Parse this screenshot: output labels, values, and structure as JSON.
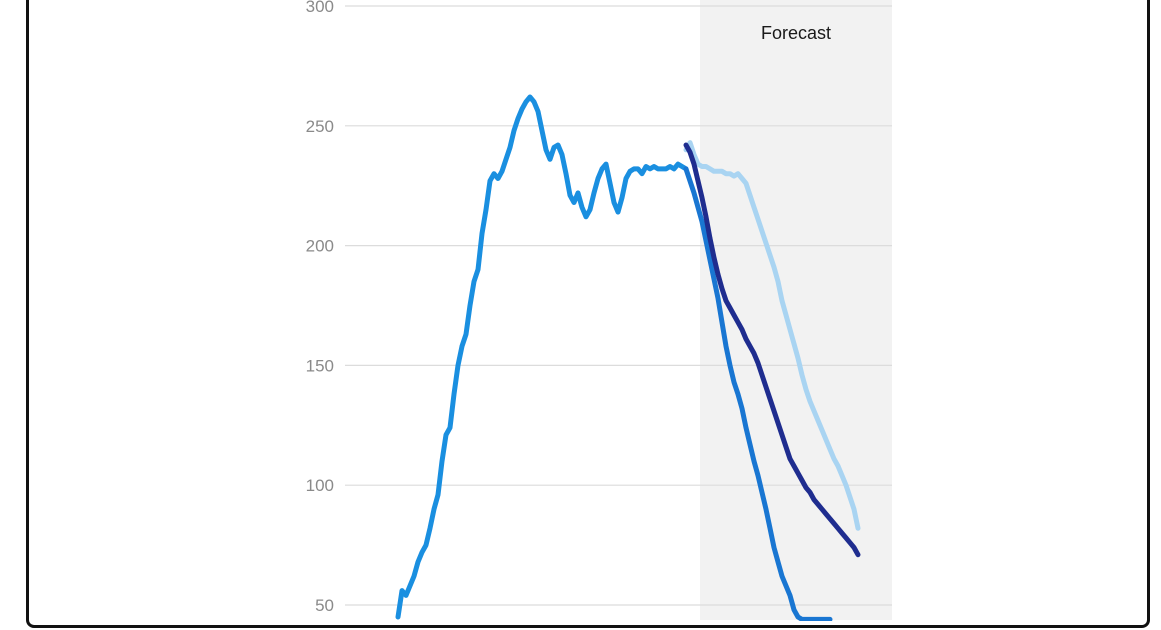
{
  "chart_data": {
    "type": "line",
    "title": "",
    "xlabel": "",
    "ylabel": "",
    "ylim": [
      45,
      300
    ],
    "yticks": [
      300,
      250,
      200,
      150,
      100,
      50
    ],
    "grid": true,
    "forecast_label": "Forecast",
    "colors": {
      "history": "#1a8fe0",
      "forecast_low": "#1976d2",
      "forecast_mid": "#1f2d8f",
      "forecast_high": "#a9d4f2",
      "forecast_band": "#f2f2f2"
    },
    "series": [
      {
        "key": "history",
        "x": [
          0,
          1,
          2,
          3,
          4,
          5,
          6,
          7,
          8,
          9,
          10,
          11,
          12,
          13,
          14,
          15,
          16,
          17,
          18,
          19,
          20,
          21,
          22,
          23,
          24,
          25,
          26,
          27,
          28,
          29,
          30,
          31,
          32,
          33,
          34,
          35,
          36,
          37,
          38,
          39,
          40,
          41,
          42,
          43,
          44,
          45,
          46,
          47,
          48,
          49,
          50,
          51,
          52,
          53,
          54,
          55,
          56,
          57,
          58,
          59,
          60,
          61,
          62,
          63,
          64,
          65,
          66,
          67,
          68,
          69,
          70,
          71,
          72
        ],
        "values": [
          45,
          56,
          54,
          58,
          62,
          68,
          72,
          75,
          82,
          90,
          96,
          110,
          121,
          124,
          138,
          150,
          158,
          163,
          175,
          185,
          190,
          205,
          215,
          227,
          230,
          228,
          231,
          236,
          241,
          248,
          253,
          257,
          260,
          262,
          260,
          256,
          248,
          240,
          236,
          241,
          242,
          238,
          230,
          221,
          218,
          222,
          216,
          212,
          215,
          222,
          228,
          232,
          234,
          226,
          218,
          214,
          220,
          228,
          231,
          232,
          232,
          230,
          233,
          232,
          233,
          232,
          232,
          232,
          233,
          232,
          234,
          233,
          232
        ],
        "color_key": "history"
      },
      {
        "key": "forecast_low",
        "x": [
          72,
          73,
          74,
          75,
          76,
          77,
          78,
          79,
          80,
          81,
          82,
          83,
          84,
          85,
          86,
          87,
          88,
          89,
          90,
          91,
          92,
          93,
          94,
          95,
          96,
          97,
          98,
          99,
          100,
          101,
          102,
          103,
          104,
          105,
          106,
          107,
          108
        ],
        "values": [
          232,
          227,
          222,
          216,
          210,
          202,
          194,
          186,
          178,
          168,
          158,
          150,
          143,
          138,
          132,
          124,
          117,
          110,
          104,
          97,
          90,
          82,
          74,
          68,
          62,
          58,
          54,
          48,
          45,
          44,
          44,
          44,
          44,
          44,
          44,
          44,
          44
        ],
        "color_key": "forecast_low"
      },
      {
        "key": "forecast_mid",
        "x": [
          72,
          73,
          74,
          75,
          76,
          77,
          78,
          79,
          80,
          81,
          82,
          83,
          84,
          85,
          86,
          87,
          88,
          89,
          90,
          91,
          92,
          93,
          94,
          95,
          96,
          97,
          98,
          99,
          100,
          101,
          102,
          103,
          104,
          105,
          106,
          107,
          108,
          109,
          110,
          111,
          112,
          113,
          114,
          115
        ],
        "values": [
          242,
          239,
          234,
          227,
          220,
          212,
          203,
          195,
          188,
          182,
          177,
          174,
          171,
          168,
          165,
          161,
          158,
          155,
          151,
          146,
          141,
          136,
          131,
          126,
          121,
          116,
          111,
          108,
          105,
          102,
          99,
          97,
          94,
          92,
          90,
          88,
          86,
          84,
          82,
          80,
          78,
          76,
          74,
          71
        ],
        "color_key": "forecast_mid"
      },
      {
        "key": "forecast_high",
        "x": [
          72,
          73,
          74,
          75,
          76,
          77,
          78,
          79,
          80,
          81,
          82,
          83,
          84,
          85,
          86,
          87,
          88,
          89,
          90,
          91,
          92,
          93,
          94,
          95,
          96,
          97,
          98,
          99,
          100,
          101,
          102,
          103,
          104,
          105,
          106,
          107,
          108,
          109,
          110,
          111,
          112,
          113,
          114,
          115
        ],
        "values": [
          240,
          243,
          238,
          234,
          233,
          233,
          232,
          231,
          231,
          231,
          230,
          230,
          229,
          230,
          228,
          226,
          221,
          216,
          211,
          206,
          201,
          196,
          191,
          185,
          177,
          171,
          165,
          159,
          153,
          146,
          140,
          135,
          131,
          127,
          123,
          119,
          115,
          111,
          108,
          104,
          100,
          95,
          90,
          82
        ],
        "color_key": "forecast_high"
      }
    ]
  }
}
